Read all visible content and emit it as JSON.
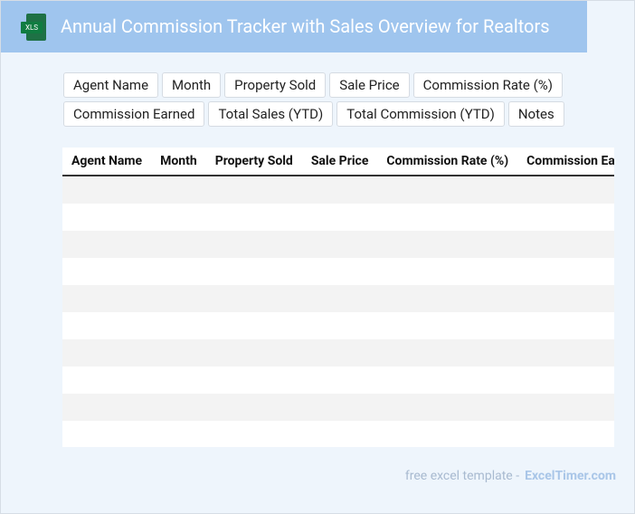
{
  "header": {
    "icon_label": "XLS",
    "title": "Annual Commission Tracker with Sales Overview for Realtors"
  },
  "fields": [
    "Agent Name",
    "Month",
    "Property Sold",
    "Sale Price",
    "Commission Rate (%)",
    "Commission Earned",
    "Total Sales (YTD)",
    "Total Commission (YTD)",
    "Notes"
  ],
  "table": {
    "columns": [
      "Agent Name",
      "Month",
      "Property Sold",
      "Sale Price",
      "Commission Rate (%)",
      "Commission Earned"
    ]
  },
  "footer": {
    "text": "free excel template -",
    "brand": "ExcelTimer.com"
  }
}
